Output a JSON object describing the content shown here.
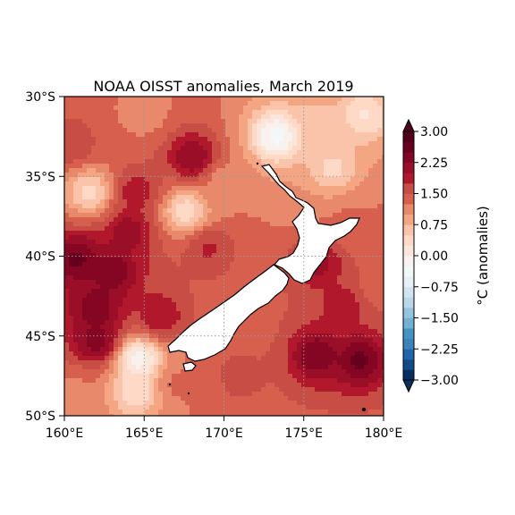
{
  "chart_data": {
    "type": "heatmap",
    "title": "NOAA OISST anomalies, March 2019",
    "x_ticks": [
      {
        "value": 160,
        "label": "160°E"
      },
      {
        "value": 165,
        "label": "165°E"
      },
      {
        "value": 170,
        "label": "170°E"
      },
      {
        "value": 175,
        "label": "175°E"
      },
      {
        "value": 180,
        "label": "180°E"
      }
    ],
    "y_ticks": [
      {
        "value": -30,
        "label": "30°S"
      },
      {
        "value": -35,
        "label": "35°S"
      },
      {
        "value": -40,
        "label": "40°S"
      },
      {
        "value": -45,
        "label": "45°S"
      },
      {
        "value": -50,
        "label": "50°S"
      }
    ],
    "xlim": [
      160,
      180
    ],
    "ylim": [
      -50,
      -30
    ],
    "grid": true,
    "colorbar": {
      "label": "°C (anomalies)",
      "range": [
        -3.0,
        3.0
      ],
      "levels": [
        -3.0,
        -2.75,
        -2.5,
        -2.25,
        -2.0,
        -1.75,
        -1.5,
        -1.25,
        -1.0,
        -0.75,
        -0.5,
        -0.25,
        0.0,
        0.25,
        0.5,
        0.75,
        1.0,
        1.25,
        1.5,
        1.75,
        2.0,
        2.25,
        2.5,
        2.75,
        3.0
      ],
      "colors": [
        "#053061",
        "#134b87",
        "#2166ac",
        "#3a84bb",
        "#4393c3",
        "#72b1d4",
        "#92c5de",
        "#b8d8e9",
        "#d1e5f0",
        "#e6f0f5",
        "#f4f7f7",
        "#f9f1ee",
        "#fbe6dc",
        "#fdd9c6",
        "#f9c4aa",
        "#f4a582",
        "#e8896b",
        "#d6604d",
        "#c84d45",
        "#b2182b",
        "#9b0e28",
        "#850623",
        "#67001f",
        "#52001a"
      ],
      "extend": "both",
      "ticks": [
        {
          "value": 3.0,
          "label": "3.00"
        },
        {
          "value": 2.25,
          "label": "2.25"
        },
        {
          "value": 1.5,
          "label": "1.50"
        },
        {
          "value": 0.75,
          "label": "0.75"
        },
        {
          "value": 0.0,
          "label": "0.00"
        },
        {
          "value": -0.75,
          "label": "−0.75"
        },
        {
          "value": -1.5,
          "label": "−1.50"
        },
        {
          "value": -2.25,
          "label": "−2.25"
        },
        {
          "value": -3.0,
          "label": "−3.00"
        }
      ]
    },
    "anomaly_hotspots": [
      {
        "lon": 160.8,
        "lat": -40.2,
        "value": 2.6
      },
      {
        "lon": 163.0,
        "lat": -41.0,
        "value": 2.5
      },
      {
        "lon": 162.0,
        "lat": -43.3,
        "value": 2.5
      },
      {
        "lon": 162.0,
        "lat": -45.3,
        "value": 2.4
      },
      {
        "lon": 164.0,
        "lat": -38.5,
        "value": 2.2
      },
      {
        "lon": 168.0,
        "lat": -33.8,
        "value": 2.3
      },
      {
        "lon": 164.5,
        "lat": -36.0,
        "value": 1.9
      },
      {
        "lon": 166.0,
        "lat": -43.8,
        "value": 2.0
      },
      {
        "lon": 160.5,
        "lat": -33.0,
        "value": 1.7
      },
      {
        "lon": 169.0,
        "lat": -39.5,
        "value": 1.8
      },
      {
        "lon": 173.0,
        "lat": -41.5,
        "value": 1.5
      },
      {
        "lon": 176.0,
        "lat": -40.5,
        "value": 2.1
      },
      {
        "lon": 175.8,
        "lat": -46.2,
        "value": 2.5
      },
      {
        "lon": 178.5,
        "lat": -46.5,
        "value": 2.6
      },
      {
        "lon": 177.5,
        "lat": -43.0,
        "value": 1.9
      },
      {
        "lon": 171.0,
        "lat": -47.5,
        "value": 1.6
      },
      {
        "lon": 167.0,
        "lat": -48.0,
        "value": 1.3
      },
      {
        "lon": 178.0,
        "lat": -38.0,
        "value": 1.3
      },
      {
        "lon": 170.0,
        "lat": -35.5,
        "value": 1.1
      },
      {
        "lon": 174.5,
        "lat": -36.5,
        "value": 1.0
      },
      {
        "lon": 165.0,
        "lat": -31.0,
        "value": 1.1
      },
      {
        "lon": 176.0,
        "lat": -32.0,
        "value": 0.6
      },
      {
        "lon": 173.3,
        "lat": -32.5,
        "value": -0.4
      },
      {
        "lon": 178.8,
        "lat": -31.2,
        "value": 0.2
      },
      {
        "lon": 164.7,
        "lat": -46.5,
        "value": -0.2
      },
      {
        "lon": 164.5,
        "lat": -48.5,
        "value": 0.3
      },
      {
        "lon": 167.6,
        "lat": -37.2,
        "value": 0.3
      },
      {
        "lon": 161.6,
        "lat": -36.0,
        "value": 0.4
      },
      {
        "lon": 176.8,
        "lat": -34.5,
        "value": 0.4
      },
      {
        "lon": 171.5,
        "lat": -44.0,
        "value": 1.4
      },
      {
        "lon": 160.5,
        "lat": -48.5,
        "value": 1.2
      },
      {
        "lon": 179.5,
        "lat": -42.0,
        "value": 1.4
      }
    ],
    "background_anomaly": 1.3
  }
}
